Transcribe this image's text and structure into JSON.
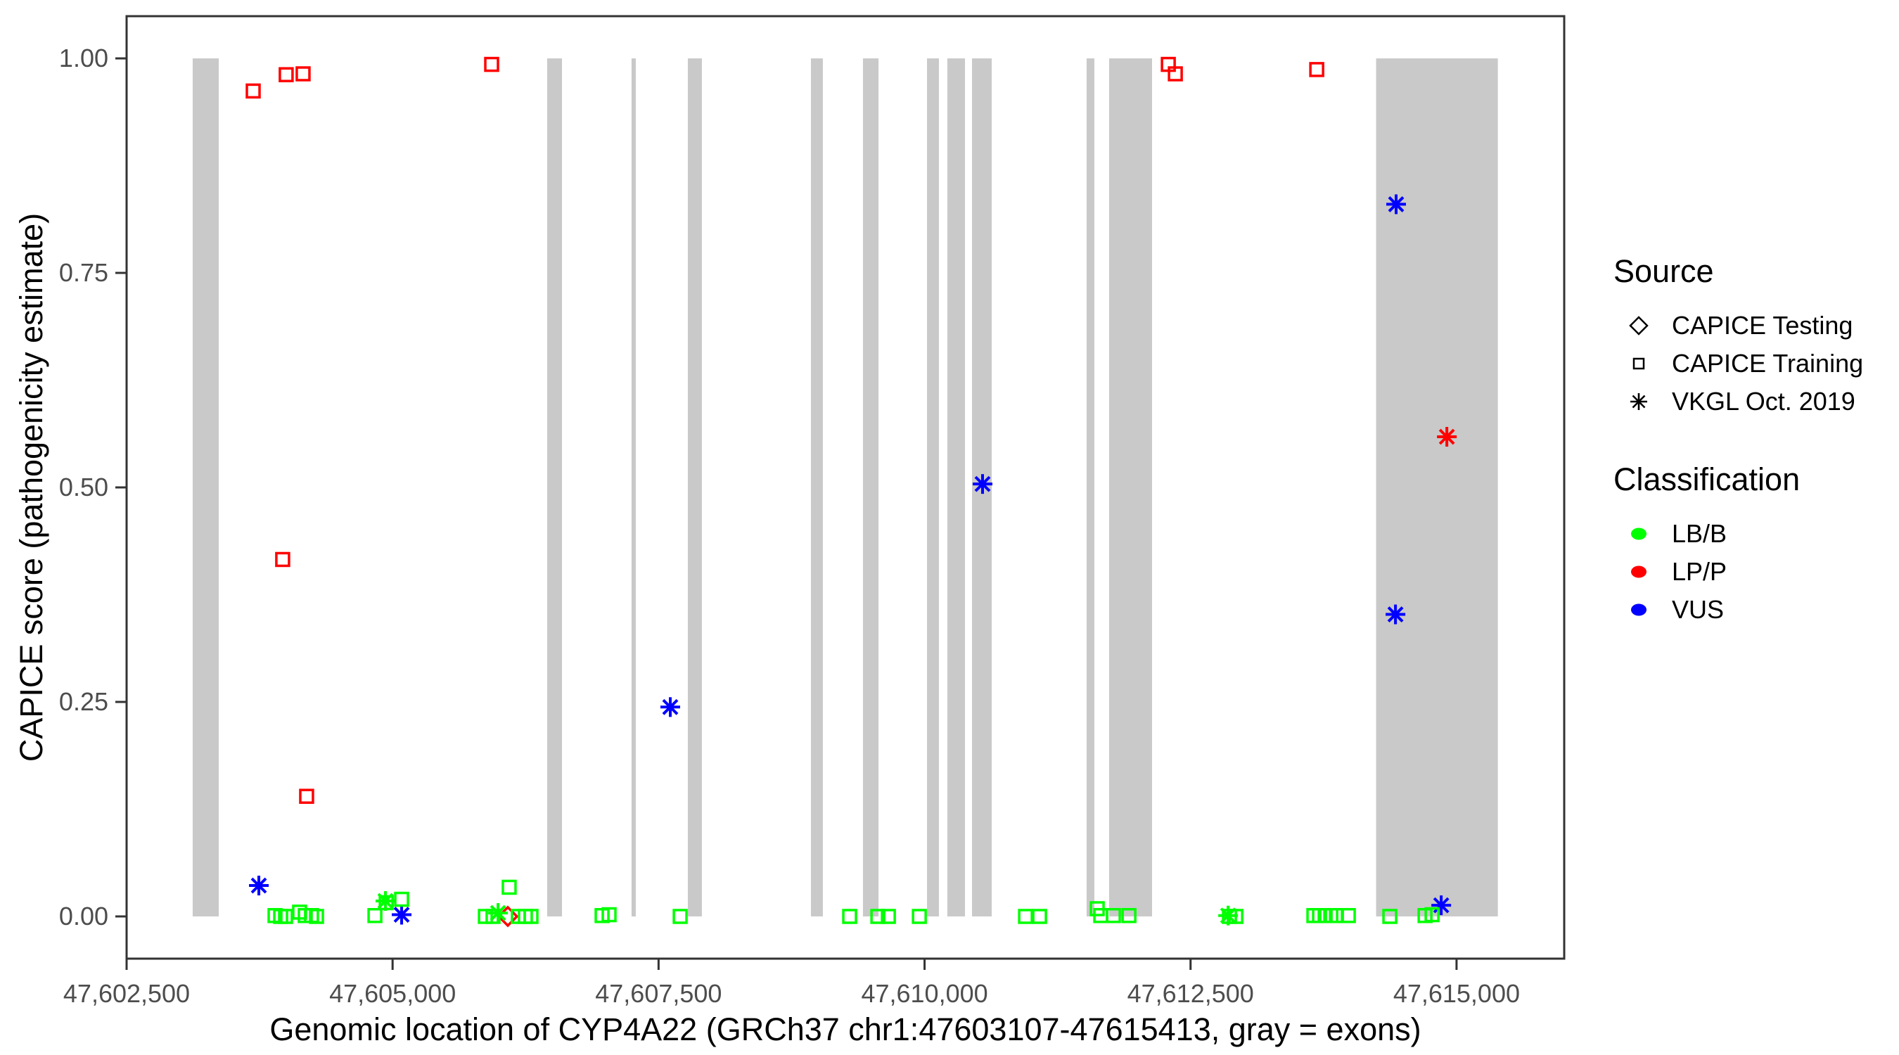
{
  "chart_data": {
    "type": "scatter",
    "title": "",
    "xlabel": "Genomic location of CYP4A22 (GRCh37 chr1:47603107-47615413, gray = exons)",
    "ylabel": "CAPICE score (pathogenicity estimate)",
    "x_domain": [
      47602500,
      47616012
    ],
    "y_domain": [
      -0.0492,
      1.0492
    ],
    "x_ticks": [
      {
        "value": 47602500,
        "label": "47,602,500"
      },
      {
        "value": 47605000,
        "label": "47,605,000"
      },
      {
        "value": 47607500,
        "label": "47,607,500"
      },
      {
        "value": 47610000,
        "label": "47,610,000"
      },
      {
        "value": 47612500,
        "label": "47,612,500"
      },
      {
        "value": 47615000,
        "label": "47,615,000"
      }
    ],
    "y_ticks": [
      {
        "value": 0.0,
        "label": "0.00"
      },
      {
        "value": 0.25,
        "label": "0.25"
      },
      {
        "value": 0.5,
        "label": "0.50"
      },
      {
        "value": 0.75,
        "label": "0.75"
      },
      {
        "value": 1.0,
        "label": "1.00"
      }
    ],
    "grid": false,
    "legend_position": "right",
    "colors": {
      "LB/B": "#00FF00",
      "LP/P": "#FF0000",
      "VUS": "#0000FF",
      "exon": "#C9C9C9",
      "axis": "#333333",
      "tick_label": "#4D4D4D"
    },
    "marker_shapes": {
      "CAPICE Testing": "diamond",
      "CAPICE Training": "square",
      "VKGL Oct. 2019": "asterisk"
    },
    "exons_bp": [
      [
        47603121,
        47603366
      ],
      [
        47606453,
        47606592
      ],
      [
        47607246,
        47607286
      ],
      [
        47607775,
        47607907
      ],
      [
        47608932,
        47609044
      ],
      [
        47609421,
        47609567
      ],
      [
        47610023,
        47610135
      ],
      [
        47610214,
        47610380
      ],
      [
        47610446,
        47610631
      ],
      [
        47611523,
        47611596
      ],
      [
        47611735,
        47612138
      ],
      [
        47614244,
        47615388
      ]
    ],
    "points": [
      {
        "bp": 47603690,
        "score": 0.962,
        "source": "CAPICE Training",
        "class": "LP/P"
      },
      {
        "bp": 47603967,
        "score": 0.416,
        "source": "CAPICE Training",
        "class": "LP/P"
      },
      {
        "bp": 47604000,
        "score": 0.981,
        "source": "CAPICE Training",
        "class": "LP/P"
      },
      {
        "bp": 47604159,
        "score": 0.982,
        "source": "CAPICE Training",
        "class": "LP/P"
      },
      {
        "bp": 47604192,
        "score": 0.14,
        "source": "CAPICE Training",
        "class": "LP/P"
      },
      {
        "bp": 47605931,
        "score": 0.993,
        "source": "CAPICE Training",
        "class": "LP/P"
      },
      {
        "bp": 47612291,
        "score": 0.993,
        "source": "CAPICE Training",
        "class": "LP/P"
      },
      {
        "bp": 47612357,
        "score": 0.982,
        "source": "CAPICE Training",
        "class": "LP/P"
      },
      {
        "bp": 47613686,
        "score": 0.987,
        "source": "CAPICE Training",
        "class": "LP/P"
      },
      {
        "bp": 47606083,
        "score": 0.0,
        "source": "CAPICE Testing",
        "class": "LP/P"
      },
      {
        "bp": 47614909,
        "score": 0.559,
        "source": "VKGL Oct. 2019",
        "class": "LP/P"
      },
      {
        "bp": 47603743,
        "score": 0.036,
        "source": "VKGL Oct. 2019",
        "class": "VUS"
      },
      {
        "bp": 47605085,
        "score": 0.002,
        "source": "VKGL Oct. 2019",
        "class": "VUS"
      },
      {
        "bp": 47607610,
        "score": 0.244,
        "source": "VKGL Oct. 2019",
        "class": "VUS"
      },
      {
        "bp": 47610545,
        "score": 0.504,
        "source": "VKGL Oct. 2019",
        "class": "VUS"
      },
      {
        "bp": 47614432,
        "score": 0.83,
        "source": "VKGL Oct. 2019",
        "class": "VUS"
      },
      {
        "bp": 47614426,
        "score": 0.352,
        "source": "VKGL Oct. 2019",
        "class": "VUS"
      },
      {
        "bp": 47614856,
        "score": 0.013,
        "source": "VKGL Oct. 2019",
        "class": "VUS"
      },
      {
        "bp": 47604933,
        "score": 0.018,
        "source": "VKGL Oct. 2019",
        "class": "LB/B"
      },
      {
        "bp": 47605991,
        "score": 0.004,
        "source": "VKGL Oct. 2019",
        "class": "LB/B"
      },
      {
        "bp": 47612853,
        "score": 0.001,
        "source": "VKGL Oct. 2019",
        "class": "LB/B"
      },
      {
        "bp": 47603895,
        "score": 0.001,
        "source": "CAPICE Training",
        "class": "LB/B"
      },
      {
        "bp": 47603948,
        "score": 0.0,
        "source": "CAPICE Training",
        "class": "LB/B"
      },
      {
        "bp": 47603994,
        "score": 0.0,
        "source": "CAPICE Training",
        "class": "LB/B"
      },
      {
        "bp": 47604126,
        "score": 0.005,
        "source": "CAPICE Training",
        "class": "LB/B"
      },
      {
        "bp": 47604179,
        "score": 0.001,
        "source": "CAPICE Training",
        "class": "LB/B"
      },
      {
        "bp": 47604238,
        "score": 0.001,
        "source": "CAPICE Training",
        "class": "LB/B"
      },
      {
        "bp": 47604285,
        "score": 0.0,
        "source": "CAPICE Training",
        "class": "LB/B"
      },
      {
        "bp": 47604834,
        "score": 0.001,
        "source": "CAPICE Training",
        "class": "LB/B"
      },
      {
        "bp": 47604940,
        "score": 0.016,
        "source": "CAPICE Training",
        "class": "LB/B"
      },
      {
        "bp": 47605085,
        "score": 0.02,
        "source": "CAPICE Training",
        "class": "LB/B"
      },
      {
        "bp": 47605872,
        "score": 0.0,
        "source": "CAPICE Training",
        "class": "LB/B"
      },
      {
        "bp": 47605944,
        "score": 0.0,
        "source": "CAPICE Training",
        "class": "LB/B"
      },
      {
        "bp": 47606096,
        "score": 0.034,
        "source": "CAPICE Training",
        "class": "LB/B"
      },
      {
        "bp": 47606182,
        "score": 0.0,
        "source": "CAPICE Training",
        "class": "LB/B"
      },
      {
        "bp": 47606248,
        "score": 0.0,
        "source": "CAPICE Training",
        "class": "LB/B"
      },
      {
        "bp": 47606301,
        "score": 0.0,
        "source": "CAPICE Training",
        "class": "LB/B"
      },
      {
        "bp": 47606969,
        "score": 0.001,
        "source": "CAPICE Training",
        "class": "LB/B"
      },
      {
        "bp": 47607035,
        "score": 0.002,
        "source": "CAPICE Training",
        "class": "LB/B"
      },
      {
        "bp": 47607703,
        "score": 0.0,
        "source": "CAPICE Training",
        "class": "LB/B"
      },
      {
        "bp": 47609296,
        "score": 0.0,
        "source": "CAPICE Training",
        "class": "LB/B"
      },
      {
        "bp": 47609561,
        "score": 0.0,
        "source": "CAPICE Training",
        "class": "LB/B"
      },
      {
        "bp": 47609660,
        "score": 0.0,
        "source": "CAPICE Training",
        "class": "LB/B"
      },
      {
        "bp": 47609951,
        "score": 0.0,
        "source": "CAPICE Training",
        "class": "LB/B"
      },
      {
        "bp": 47610949,
        "score": 0.0,
        "source": "CAPICE Training",
        "class": "LB/B"
      },
      {
        "bp": 47611081,
        "score": 0.0,
        "source": "CAPICE Training",
        "class": "LB/B"
      },
      {
        "bp": 47611623,
        "score": 0.009,
        "source": "CAPICE Training",
        "class": "LB/B"
      },
      {
        "bp": 47611656,
        "score": 0.001,
        "source": "CAPICE Training",
        "class": "LB/B"
      },
      {
        "bp": 47611775,
        "score": 0.001,
        "source": "CAPICE Training",
        "class": "LB/B"
      },
      {
        "bp": 47611921,
        "score": 0.001,
        "source": "CAPICE Training",
        "class": "LB/B"
      },
      {
        "bp": 47612866,
        "score": 0.0,
        "source": "CAPICE Training",
        "class": "LB/B"
      },
      {
        "bp": 47612926,
        "score": 0.0,
        "source": "CAPICE Training",
        "class": "LB/B"
      },
      {
        "bp": 47613659,
        "score": 0.001,
        "source": "CAPICE Training",
        "class": "LB/B"
      },
      {
        "bp": 47613712,
        "score": 0.001,
        "source": "CAPICE Training",
        "class": "LB/B"
      },
      {
        "bp": 47613765,
        "score": 0.001,
        "source": "CAPICE Training",
        "class": "LB/B"
      },
      {
        "bp": 47613818,
        "score": 0.001,
        "source": "CAPICE Training",
        "class": "LB/B"
      },
      {
        "bp": 47613871,
        "score": 0.001,
        "source": "CAPICE Training",
        "class": "LB/B"
      },
      {
        "bp": 47613983,
        "score": 0.001,
        "source": "CAPICE Training",
        "class": "LB/B"
      },
      {
        "bp": 47614373,
        "score": 0.0,
        "source": "CAPICE Training",
        "class": "LB/B"
      },
      {
        "bp": 47614704,
        "score": 0.001,
        "source": "CAPICE Training",
        "class": "LB/B"
      },
      {
        "bp": 47614770,
        "score": 0.002,
        "source": "CAPICE Training",
        "class": "LB/B"
      }
    ]
  },
  "legend": {
    "source": {
      "title": "Source",
      "items": [
        {
          "label": "CAPICE Testing",
          "shape": "diamond"
        },
        {
          "label": "CAPICE Training",
          "shape": "square"
        },
        {
          "label": "VKGL Oct. 2019",
          "shape": "asterisk"
        }
      ]
    },
    "classification": {
      "title": "Classification",
      "items": [
        {
          "label": "LB/B",
          "color": "#00FF00"
        },
        {
          "label": "LP/P",
          "color": "#FF0000"
        },
        {
          "label": "VUS",
          "color": "#0000FF"
        }
      ]
    }
  }
}
